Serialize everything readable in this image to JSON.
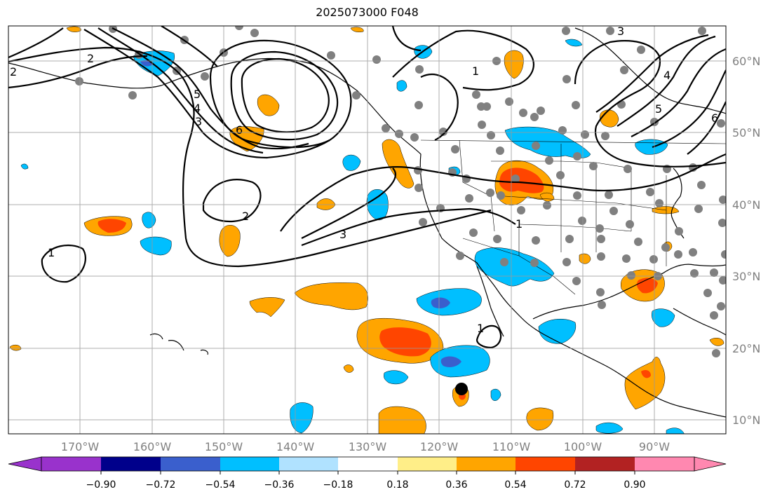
{
  "title": "2025073000 F048",
  "lon_labels": [
    "170°W",
    "160°W",
    "150°W",
    "140°W",
    "130°W",
    "120°W",
    "110°W",
    "100°W",
    "90°W"
  ],
  "lat_labels": [
    "60°N",
    "50°N",
    "40°N",
    "30°N",
    "20°N",
    "10°N"
  ],
  "contour_labels": [
    "2",
    "2",
    "1",
    "5",
    "4",
    "3",
    "6",
    "2",
    "3",
    "1",
    "1",
    "3",
    "4",
    "5",
    "6",
    "1"
  ],
  "colorbar": {
    "ticks": [
      "−0.90",
      "−0.72",
      "−0.54",
      "−0.36",
      "−0.18",
      "0.18",
      "0.36",
      "0.54",
      "0.72",
      "0.90"
    ],
    "colors": [
      "#9932cc",
      "#00008b",
      "#3a5fcd",
      "#00bfff",
      "#b0e2ff",
      "#ffffff",
      "#ffee88",
      "#ffa500",
      "#ff4500",
      "#b22222",
      "#ff88b0"
    ]
  },
  "colors": {
    "strong_positive": "#ff4500",
    "positive": "#ffa500",
    "weak_positive": "#ffee88",
    "negative": "#00bfff",
    "strong_negative": "#3a5fcd",
    "station_dot": "#808080",
    "grid": "#999999"
  }
}
